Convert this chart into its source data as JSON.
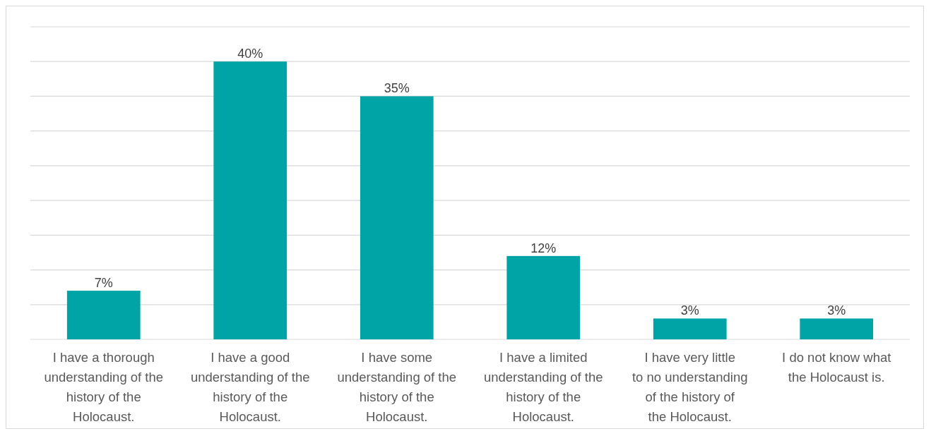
{
  "chart_data": {
    "type": "bar",
    "categories": [
      "I have a thorough understanding of the history of the Holocaust.",
      "I have a good understanding of the history of the Holocaust.",
      "I have some understanding of the history of the Holocaust.",
      "I have a limited understanding of the history of the Holocaust.",
      "I have very little to no understanding of the history of the Holocaust.",
      "I do not know what the Holocaust is."
    ],
    "values": [
      7,
      40,
      35,
      12,
      3,
      3
    ],
    "value_labels": [
      "7%",
      "40%",
      "35%",
      "12%",
      "3%",
      "3%"
    ],
    "color": "#00a3a6",
    "ylim": [
      0,
      45
    ],
    "yticks": [
      {
        "value": 0,
        "label": null
      },
      {
        "value": 5,
        "label": null
      },
      {
        "value": 10,
        "label": null
      },
      {
        "value": 15,
        "label": null
      },
      {
        "value": 20,
        "label": null
      },
      {
        "value": 25,
        "label": null
      },
      {
        "value": 30,
        "label": null
      },
      {
        "value": 35,
        "label": null
      },
      {
        "value": 40,
        "label": null
      },
      {
        "value": 45,
        "label": null
      }
    ],
    "grid": "y",
    "tick_labels": "x"
  }
}
